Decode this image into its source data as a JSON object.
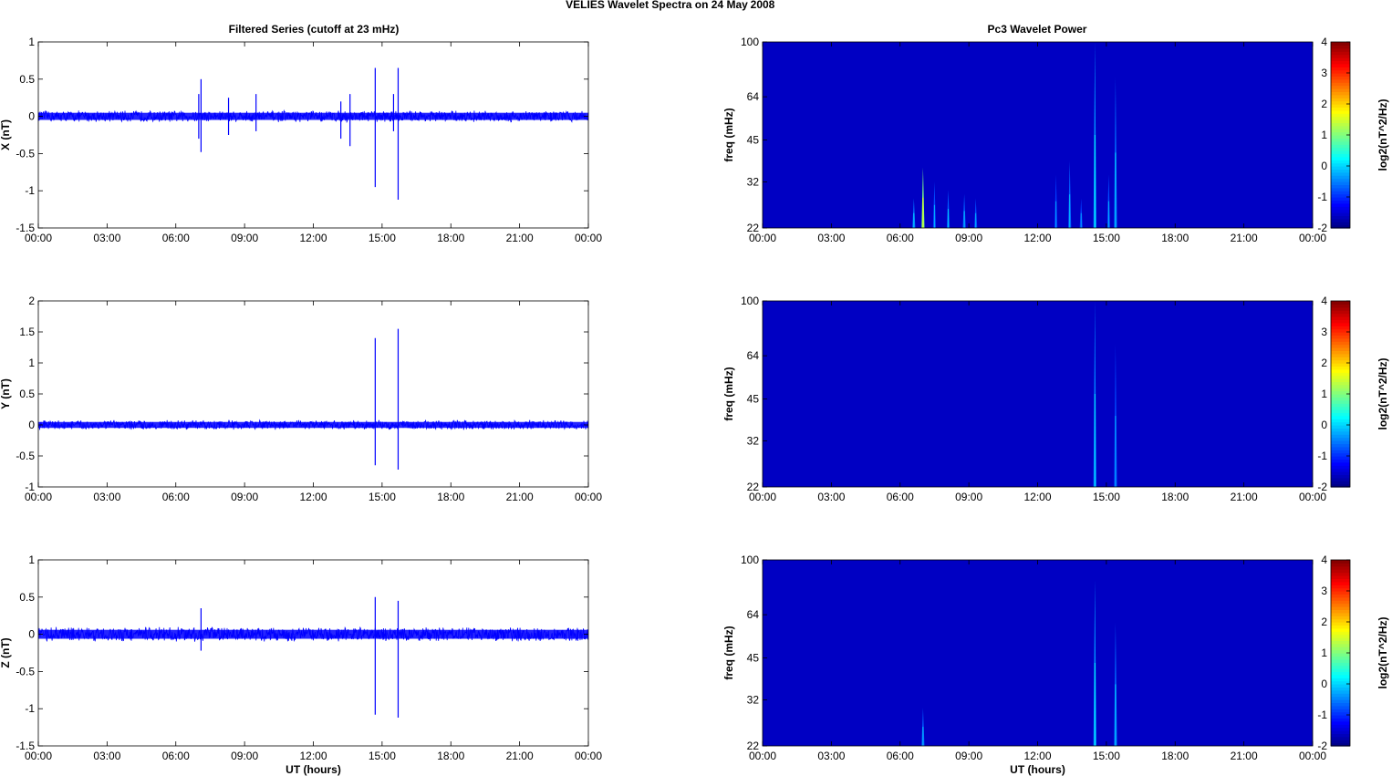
{
  "figure": {
    "title_left": "VELIES Wavelet Spectra on 24 May",
    "title_right": "2008",
    "col_titles": [
      "Filtered Series (cutoff at 23 mHz)",
      "Pc3 Wavelet Power"
    ],
    "xlabel": "UT (hours)"
  },
  "chart_data": [
    {
      "type": "line",
      "title": "Filtered Series (cutoff at 23 mHz)",
      "ylabel": "X (nT)",
      "xlabel": "",
      "xlim": [
        0,
        24
      ],
      "xticklabels": [
        "00:00",
        "03:00",
        "06:00",
        "09:00",
        "12:00",
        "15:00",
        "18:00",
        "21:00",
        "00:00"
      ],
      "ylim": [
        -1.5,
        1
      ],
      "yticks": [
        -1.5,
        -1,
        -0.5,
        0,
        0.5,
        1
      ],
      "color": "#0000ff",
      "noise_band": 0.08,
      "bursts": [
        {
          "x": 7.1,
          "y": [
            -0.48,
            0.5
          ]
        },
        {
          "x": 7.0,
          "y": [
            -0.3,
            0.3
          ]
        },
        {
          "x": 8.3,
          "y": [
            -0.25,
            0.25
          ]
        },
        {
          "x": 9.5,
          "y": [
            -0.2,
            0.3
          ]
        },
        {
          "x": 13.2,
          "y": [
            -0.3,
            0.2
          ]
        },
        {
          "x": 13.6,
          "y": [
            -0.4,
            0.3
          ]
        },
        {
          "x": 14.7,
          "y": [
            -0.95,
            0.65
          ]
        },
        {
          "x": 15.5,
          "y": [
            -0.2,
            0.3
          ]
        },
        {
          "x": 15.7,
          "y": [
            -1.12,
            0.65
          ]
        }
      ]
    },
    {
      "type": "heatmap",
      "title": "Pc3 Wavelet Power",
      "ylabel": "freq (mHz)",
      "xlim": [
        0,
        24
      ],
      "xticklabels": [
        "00:00",
        "03:00",
        "06:00",
        "09:00",
        "12:00",
        "15:00",
        "18:00",
        "21:00",
        "00:00"
      ],
      "ylim": [
        22,
        100
      ],
      "yticks": [
        22,
        32,
        45,
        64,
        100
      ],
      "colorbar_label": "log2(nT^2/Hz)",
      "clim": [
        -2,
        4
      ],
      "cticks": [
        -2,
        -1,
        0,
        1,
        2,
        3,
        4
      ],
      "background_value": -1.6,
      "spikes": [
        {
          "x": 6.6,
          "fmax": 28,
          "value": -0.6
        },
        {
          "x": 7.0,
          "fmax": 36,
          "value": 1.0
        },
        {
          "x": 7.5,
          "fmax": 32,
          "value": -0.8
        },
        {
          "x": 8.1,
          "fmax": 30,
          "value": -0.7
        },
        {
          "x": 8.8,
          "fmax": 29,
          "value": -0.7
        },
        {
          "x": 9.3,
          "fmax": 28,
          "value": -0.8
        },
        {
          "x": 12.8,
          "fmax": 34,
          "value": -0.9
        },
        {
          "x": 13.4,
          "fmax": 38,
          "value": -0.7
        },
        {
          "x": 13.9,
          "fmax": 28,
          "value": -0.9
        },
        {
          "x": 14.5,
          "fmax": 100,
          "value": -0.4
        },
        {
          "x": 15.1,
          "fmax": 34,
          "value": -0.8
        },
        {
          "x": 15.4,
          "fmax": 75,
          "value": -0.6
        }
      ]
    },
    {
      "type": "line",
      "ylabel": "Y (nT)",
      "xlim": [
        0,
        24
      ],
      "xticklabels": [
        "00:00",
        "03:00",
        "06:00",
        "09:00",
        "12:00",
        "15:00",
        "18:00",
        "21:00",
        "00:00"
      ],
      "ylim": [
        -1,
        2
      ],
      "yticks": [
        -1,
        -0.5,
        0,
        0.5,
        1,
        1.5,
        2
      ],
      "color": "#0000ff",
      "noise_band": 0.08,
      "bursts": [
        {
          "x": 14.7,
          "y": [
            -0.65,
            1.4
          ]
        },
        {
          "x": 15.7,
          "y": [
            -0.72,
            1.55
          ]
        }
      ]
    },
    {
      "type": "heatmap",
      "ylabel": "freq (mHz)",
      "xlim": [
        0,
        24
      ],
      "xticklabels": [
        "00:00",
        "03:00",
        "06:00",
        "09:00",
        "12:00",
        "15:00",
        "18:00",
        "21:00",
        "00:00"
      ],
      "ylim": [
        22,
        100
      ],
      "yticks": [
        22,
        32,
        45,
        64,
        100
      ],
      "colorbar_label": "log2(nT^2/Hz)",
      "clim": [
        -2,
        4
      ],
      "cticks": [
        -2,
        -1,
        0,
        1,
        2,
        3,
        4
      ],
      "background_value": -1.6,
      "spikes": [
        {
          "x": 14.5,
          "fmax": 100,
          "value": -0.5
        },
        {
          "x": 15.4,
          "fmax": 70,
          "value": -0.8
        }
      ]
    },
    {
      "type": "line",
      "ylabel": "Z (nT)",
      "xlabel": "UT (hours)",
      "xlim": [
        0,
        24
      ],
      "xticklabels": [
        "00:00",
        "03:00",
        "06:00",
        "09:00",
        "12:00",
        "15:00",
        "18:00",
        "21:00",
        "00:00"
      ],
      "ylim": [
        -1.5,
        1
      ],
      "yticks": [
        -1.5,
        -1,
        -0.5,
        0,
        0.5,
        1
      ],
      "color": "#0000ff",
      "noise_band": 0.1,
      "bursts": [
        {
          "x": 7.1,
          "y": [
            -0.22,
            0.35
          ]
        },
        {
          "x": 14.7,
          "y": [
            -1.08,
            0.5
          ]
        },
        {
          "x": 15.7,
          "y": [
            -1.12,
            0.45
          ]
        }
      ]
    },
    {
      "type": "heatmap",
      "ylabel": "freq (mHz)",
      "xlabel": "UT (hours)",
      "xlim": [
        0,
        24
      ],
      "xticklabels": [
        "00:00",
        "03:00",
        "06:00",
        "09:00",
        "12:00",
        "15:00",
        "18:00",
        "21:00",
        "00:00"
      ],
      "ylim": [
        22,
        100
      ],
      "yticks": [
        22,
        32,
        45,
        64,
        100
      ],
      "colorbar_label": "log2(nT^2/Hz)",
      "clim": [
        -2,
        4
      ],
      "cticks": [
        -2,
        -1,
        0,
        1,
        2,
        3,
        4
      ],
      "background_value": -1.6,
      "spikes": [
        {
          "x": 7.0,
          "fmax": 30,
          "value": -0.7
        },
        {
          "x": 14.5,
          "fmax": 85,
          "value": -0.4
        },
        {
          "x": 15.4,
          "fmax": 60,
          "value": -0.6
        }
      ]
    }
  ]
}
